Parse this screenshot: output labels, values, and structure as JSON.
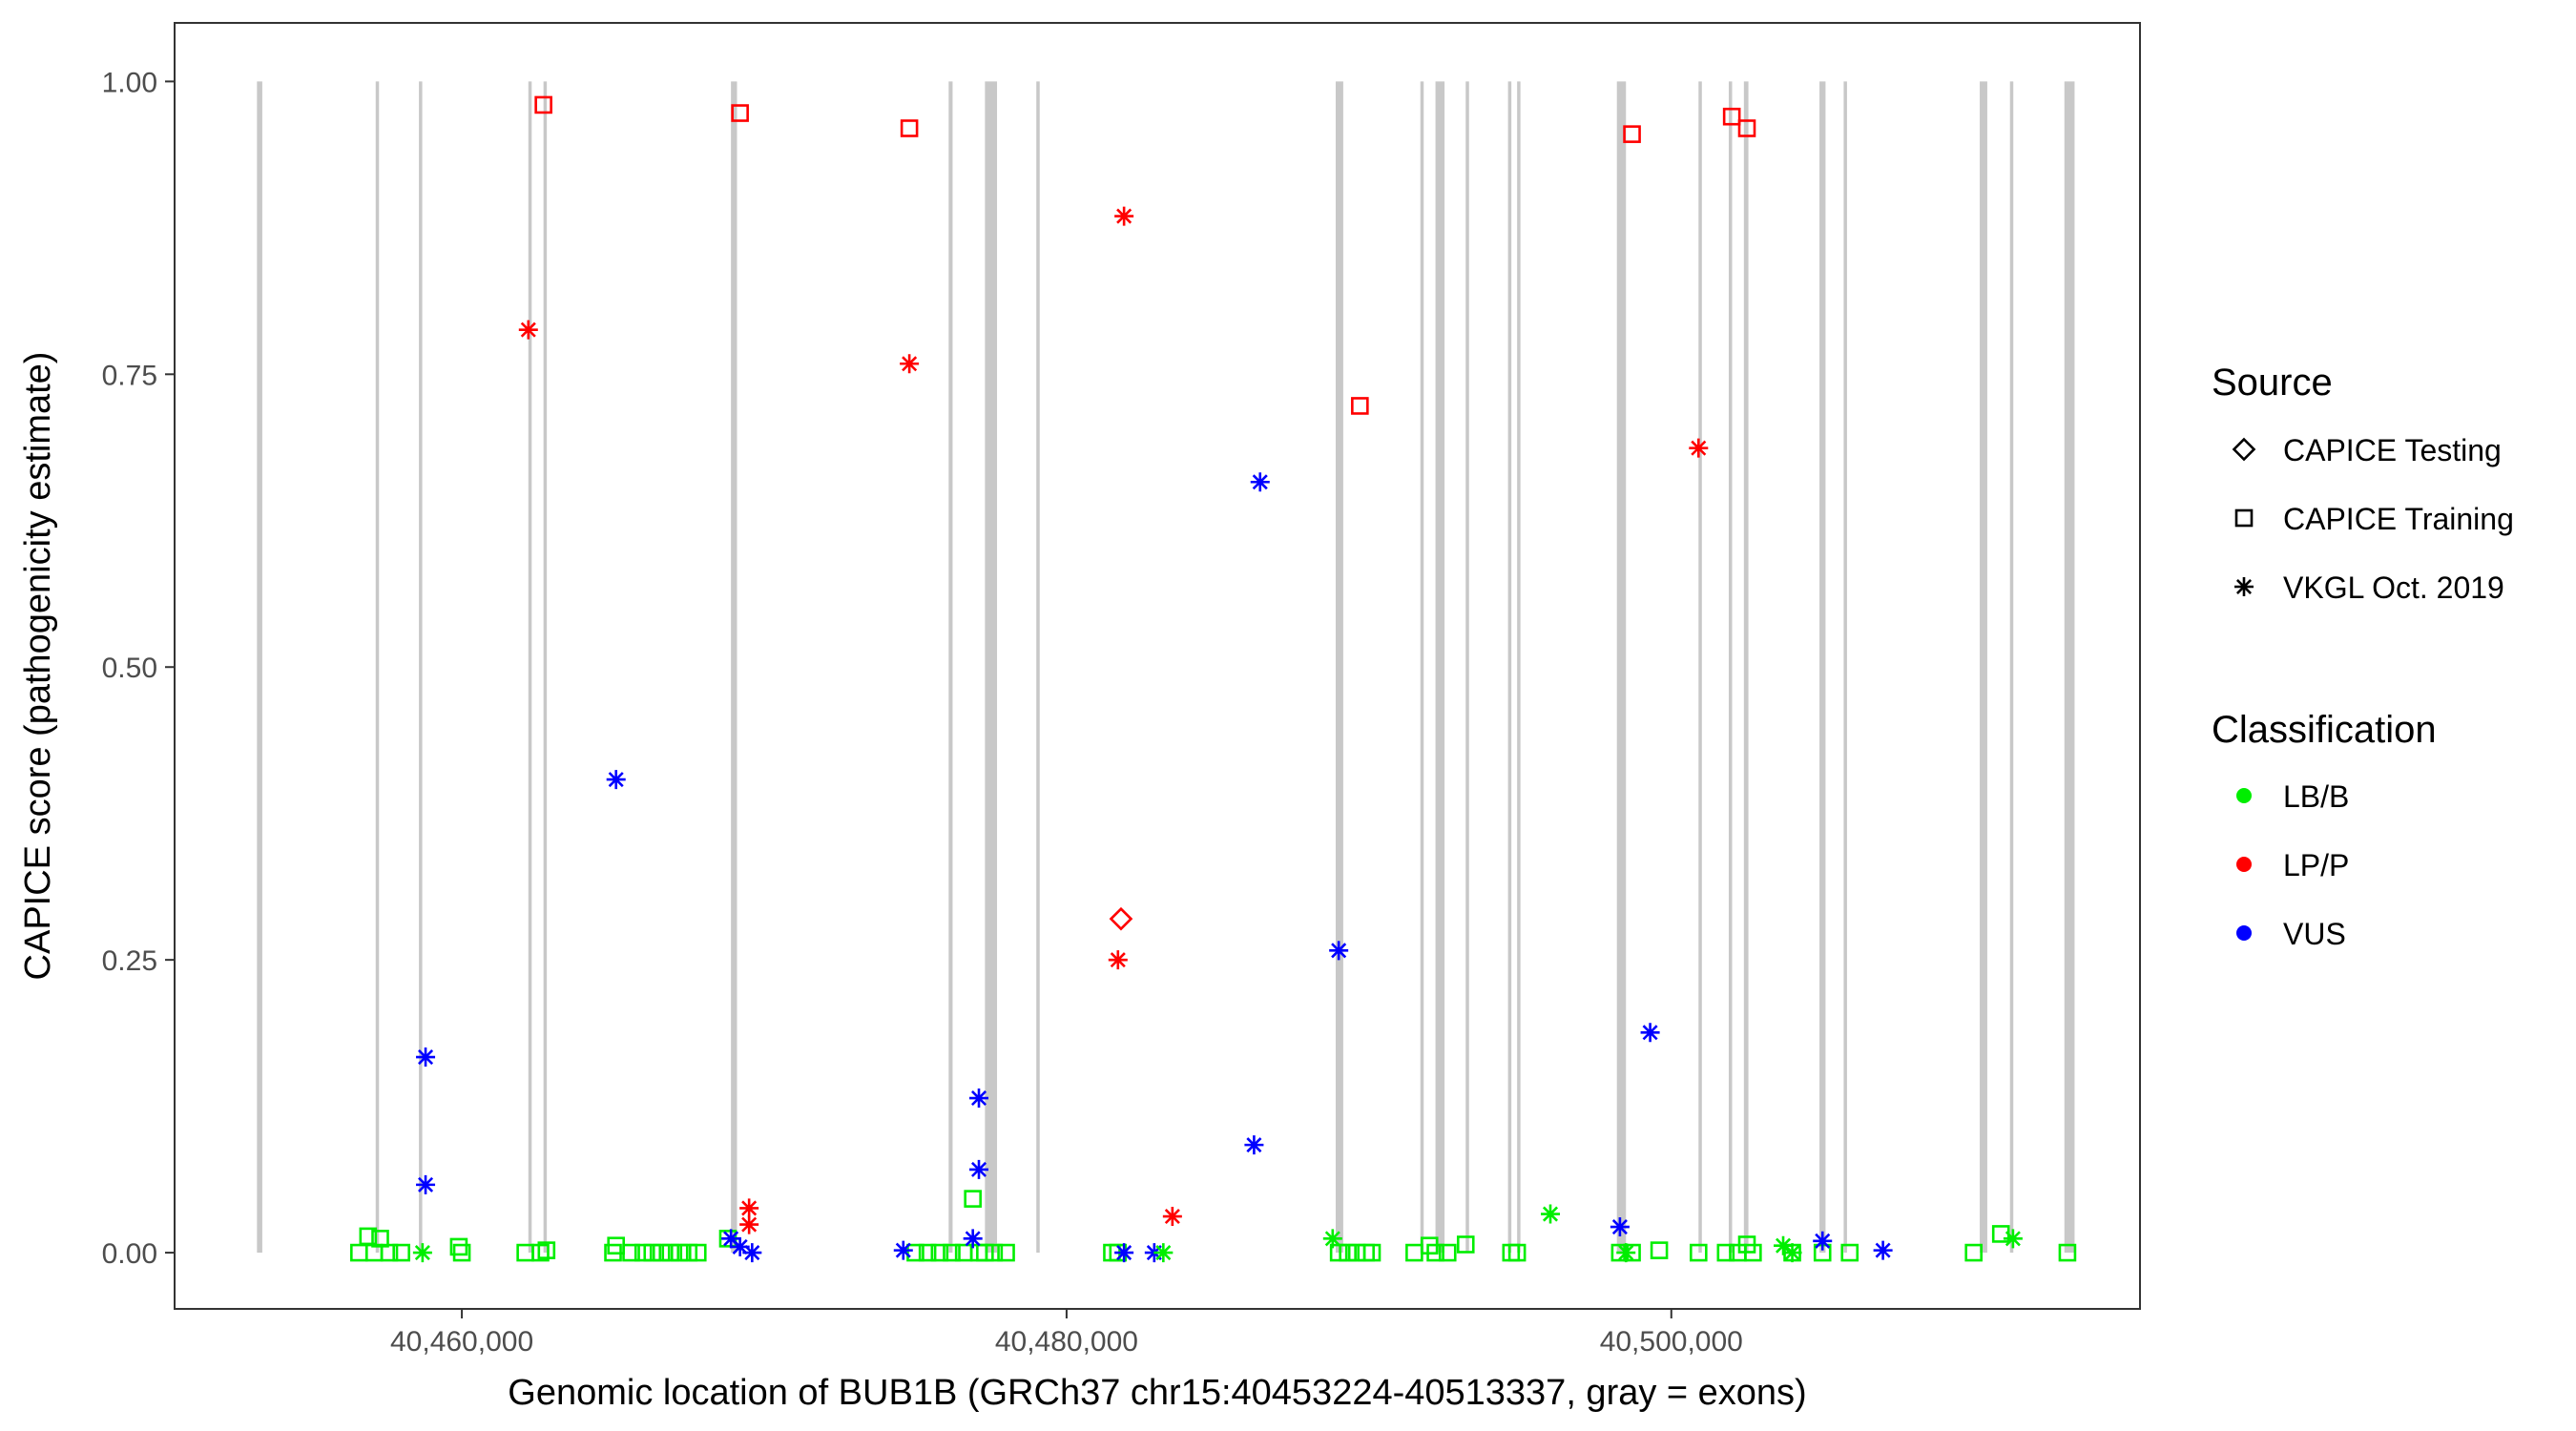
{
  "chart_data": {
    "type": "scatter",
    "xlabel": "Genomic location of BUB1B (GRCh37 chr15:40453224-40513337, gray = exons)",
    "ylabel": "CAPICE score (pathogenicity estimate)",
    "xlim": [
      40450500,
      40515500
    ],
    "ylim": [
      -0.048,
      1.05
    ],
    "x_ticks": [
      40460000,
      40480000,
      40500000
    ],
    "x_tick_labels": [
      "40,460,000",
      "40,480,000",
      "40,500,000"
    ],
    "y_ticks": [
      0,
      0.25,
      0.5,
      0.75,
      1
    ],
    "y_tick_labels": [
      "0.00",
      "0.25",
      "0.50",
      "0.75",
      "1.00"
    ],
    "grid": false,
    "exon_color": "#c8c8c8",
    "exons": [
      [
        40453224,
        40453400
      ],
      [
        40457150,
        40457260
      ],
      [
        40458580,
        40458680
      ],
      [
        40462200,
        40462300
      ],
      [
        40462700,
        40462780
      ],
      [
        40468900,
        40469100
      ],
      [
        40476100,
        40476230
      ],
      [
        40477300,
        40477700
      ],
      [
        40479000,
        40479100
      ],
      [
        40488900,
        40489150
      ],
      [
        40491700,
        40491800
      ],
      [
        40492200,
        40492500
      ],
      [
        40493200,
        40493250
      ],
      [
        40494600,
        40494700
      ],
      [
        40494900,
        40494950
      ],
      [
        40498200,
        40498500
      ],
      [
        40500900,
        40501000
      ],
      [
        40501900,
        40502000
      ],
      [
        40502400,
        40502550
      ],
      [
        40504900,
        40505100
      ],
      [
        40505700,
        40505800
      ],
      [
        40510200,
        40510450
      ],
      [
        40511200,
        40511250
      ],
      [
        40513000,
        40513337
      ]
    ],
    "legend": {
      "position": "right",
      "source_title": "Source",
      "source_items": [
        {
          "label": "CAPICE Testing",
          "shape": "diamond"
        },
        {
          "label": "CAPICE Training",
          "shape": "square"
        },
        {
          "label": "VKGL Oct. 2019",
          "shape": "asterisk"
        }
      ],
      "class_title": "Classification",
      "class_items": [
        {
          "label": "LB/B",
          "color": "#00ee00"
        },
        {
          "label": "LP/P",
          "color": "#ff0000"
        },
        {
          "label": "VUS",
          "color": "#0000ff"
        }
      ]
    },
    "series": [
      {
        "shape": "square",
        "points": [
          [
            40462700,
            0.98,
            "LP/P"
          ],
          [
            40469200,
            0.973,
            "LP/P"
          ],
          [
            40474800,
            0.96,
            "LP/P"
          ],
          [
            40489700,
            0.723,
            "LP/P"
          ],
          [
            40498700,
            0.955,
            "LP/P"
          ],
          [
            40502000,
            0.97,
            "LP/P"
          ],
          [
            40502500,
            0.96,
            "LP/P"
          ],
          [
            40456600,
            0.0,
            "LB/B"
          ],
          [
            40456900,
            0.014,
            "LB/B"
          ],
          [
            40457100,
            0.0,
            "LB/B"
          ],
          [
            40457300,
            0.012,
            "LB/B"
          ],
          [
            40457600,
            0.0,
            "LB/B"
          ],
          [
            40458000,
            0.0,
            "LB/B"
          ],
          [
            40459900,
            0.005,
            "LB/B"
          ],
          [
            40460000,
            0.0,
            "LB/B"
          ],
          [
            40462100,
            0.0,
            "LB/B"
          ],
          [
            40462600,
            0.0,
            "LB/B"
          ],
          [
            40462800,
            0.002,
            "LB/B"
          ],
          [
            40465000,
            0.0,
            "LB/B"
          ],
          [
            40465100,
            0.006,
            "LB/B"
          ],
          [
            40465600,
            0.0,
            "LB/B"
          ],
          [
            40466000,
            0.0,
            "LB/B"
          ],
          [
            40466300,
            0.0,
            "LB/B"
          ],
          [
            40466600,
            0.0,
            "LB/B"
          ],
          [
            40466900,
            0.0,
            "LB/B"
          ],
          [
            40467200,
            0.0,
            "LB/B"
          ],
          [
            40467500,
            0.0,
            "LB/B"
          ],
          [
            40467800,
            0.0,
            "LB/B"
          ],
          [
            40468800,
            0.012,
            "LB/B"
          ],
          [
            40475000,
            0.0,
            "LB/B"
          ],
          [
            40475400,
            0.0,
            "LB/B"
          ],
          [
            40475800,
            0.0,
            "LB/B"
          ],
          [
            40476200,
            0.0,
            "LB/B"
          ],
          [
            40476600,
            0.0,
            "LB/B"
          ],
          [
            40476900,
            0.046,
            "LB/B"
          ],
          [
            40477100,
            0.0,
            "LB/B"
          ],
          [
            40477300,
            0.0,
            "LB/B"
          ],
          [
            40477600,
            0.0,
            "LB/B"
          ],
          [
            40478000,
            0.0,
            "LB/B"
          ],
          [
            40481500,
            0.0,
            "LB/B"
          ],
          [
            40481700,
            0.0,
            "LB/B"
          ],
          [
            40489000,
            0.0,
            "LB/B"
          ],
          [
            40489300,
            0.0,
            "LB/B"
          ],
          [
            40489600,
            0.0,
            "LB/B"
          ],
          [
            40489900,
            0.0,
            "LB/B"
          ],
          [
            40490100,
            0.0,
            "LB/B"
          ],
          [
            40491500,
            0.0,
            "LB/B"
          ],
          [
            40492000,
            0.006,
            "LB/B"
          ],
          [
            40492200,
            0.0,
            "LB/B"
          ],
          [
            40492600,
            0.0,
            "LB/B"
          ],
          [
            40493200,
            0.007,
            "LB/B"
          ],
          [
            40494700,
            0.0,
            "LB/B"
          ],
          [
            40494900,
            0.0,
            "LB/B"
          ],
          [
            40498300,
            0.0,
            "LB/B"
          ],
          [
            40498700,
            0.0,
            "LB/B"
          ],
          [
            40499600,
            0.002,
            "LB/B"
          ],
          [
            40500900,
            0.0,
            "LB/B"
          ],
          [
            40501800,
            0.0,
            "LB/B"
          ],
          [
            40502200,
            0.0,
            "LB/B"
          ],
          [
            40502500,
            0.007,
            "LB/B"
          ],
          [
            40502700,
            0.0,
            "LB/B"
          ],
          [
            40504000,
            0.0,
            "LB/B"
          ],
          [
            40505000,
            0.0,
            "LB/B"
          ],
          [
            40505900,
            0.0,
            "LB/B"
          ],
          [
            40510000,
            0.0,
            "LB/B"
          ],
          [
            40510900,
            0.016,
            "LB/B"
          ],
          [
            40513100,
            0.0,
            "LB/B"
          ]
        ]
      },
      {
        "shape": "asterisk",
        "points": [
          [
            40462200,
            0.788,
            "LP/P"
          ],
          [
            40474800,
            0.759,
            "LP/P"
          ],
          [
            40481900,
            0.885,
            "LP/P"
          ],
          [
            40481700,
            0.25,
            "LP/P"
          ],
          [
            40483500,
            0.031,
            "LP/P"
          ],
          [
            40469500,
            0.038,
            "LP/P"
          ],
          [
            40469500,
            0.024,
            "LP/P"
          ],
          [
            40500900,
            0.687,
            "LP/P"
          ],
          [
            40458800,
            0.167,
            "VUS"
          ],
          [
            40458800,
            0.058,
            "VUS"
          ],
          [
            40465100,
            0.404,
            "VUS"
          ],
          [
            40468900,
            0.012,
            "VUS"
          ],
          [
            40469200,
            0.005,
            "VUS"
          ],
          [
            40469600,
            0.0,
            "VUS"
          ],
          [
            40474600,
            0.002,
            "VUS"
          ],
          [
            40476900,
            0.012,
            "VUS"
          ],
          [
            40477100,
            0.132,
            "VUS"
          ],
          [
            40477100,
            0.071,
            "VUS"
          ],
          [
            40481900,
            0.0,
            "VUS"
          ],
          [
            40482900,
            0.0,
            "VUS"
          ],
          [
            40486200,
            0.092,
            "VUS"
          ],
          [
            40486400,
            0.658,
            "VUS"
          ],
          [
            40489000,
            0.258,
            "VUS"
          ],
          [
            40498300,
            0.022,
            "VUS"
          ],
          [
            40499300,
            0.188,
            "VUS"
          ],
          [
            40505000,
            0.01,
            "VUS"
          ],
          [
            40507000,
            0.002,
            "VUS"
          ],
          [
            40458700,
            0.0,
            "LB/B"
          ],
          [
            40483200,
            0.0,
            "LB/B"
          ],
          [
            40488800,
            0.012,
            "LB/B"
          ],
          [
            40496000,
            0.033,
            "LB/B"
          ],
          [
            40498500,
            0.0,
            "LB/B"
          ],
          [
            40503700,
            0.006,
            "LB/B"
          ],
          [
            40504000,
            0.0,
            "LB/B"
          ],
          [
            40511300,
            0.012,
            "LB/B"
          ]
        ]
      },
      {
        "shape": "diamond",
        "points": [
          [
            40481800,
            0.285,
            "LP/P"
          ]
        ]
      }
    ]
  }
}
